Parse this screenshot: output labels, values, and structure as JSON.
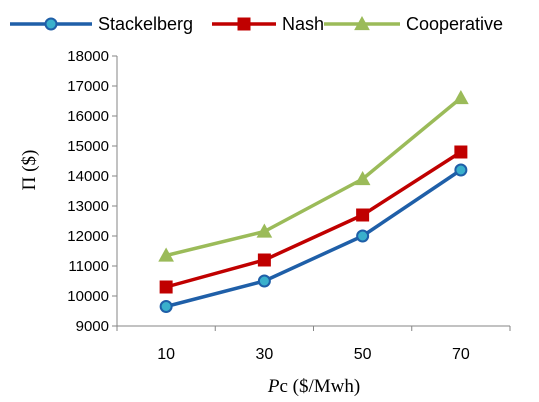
{
  "chart_data": {
    "type": "line",
    "categories": [
      "10",
      "30",
      "50",
      "70"
    ],
    "series": [
      {
        "name": "Stackelberg",
        "values": [
          9650,
          10500,
          12000,
          14200
        ],
        "color": "#1f5fa8",
        "marker_fill": "#3ab0cc",
        "marker": "circle"
      },
      {
        "name": "Nash",
        "values": [
          10300,
          11200,
          12700,
          14800
        ],
        "color": "#c00000",
        "marker_fill": "#c00000",
        "marker": "square"
      },
      {
        "name": "Cooperative",
        "values": [
          11350,
          12150,
          13900,
          16600
        ],
        "color": "#9bbb59",
        "marker_fill": "#9bbb59",
        "marker": "triangle"
      }
    ],
    "ylim": [
      9000,
      18000
    ],
    "yticks": [
      "9000",
      "10000",
      "11000",
      "12000",
      "13000",
      "14000",
      "15000",
      "16000",
      "17000",
      "18000"
    ],
    "ylabel": "Π ($)",
    "xlabel_italic": "P",
    "xlabel_rest": "c ($/Mwh)",
    "legend_position": "top",
    "grid": false
  }
}
